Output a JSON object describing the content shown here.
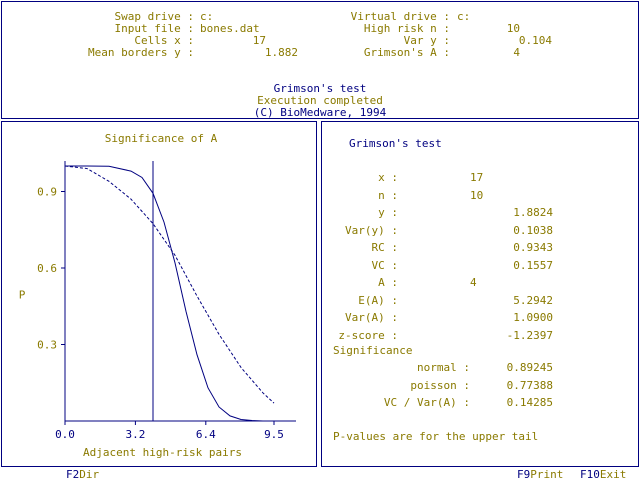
{
  "header": {
    "rows": [
      {
        "left_label": "Swap drive :",
        "left_value": "c:",
        "right_label": "Virtual drive :",
        "right_value": "c:"
      },
      {
        "left_label": "Input file :",
        "left_value": "bones.dat",
        "right_label": "High risk n :",
        "right_value": "10"
      },
      {
        "left_label": "Cells x :",
        "left_value": "17",
        "right_label": "Var y :",
        "right_value": "0.104"
      },
      {
        "left_label": "Mean borders y :",
        "left_value": "1.882",
        "right_label": "Grimson's A :",
        "right_value": "4"
      }
    ],
    "title": "Grimson's test",
    "status": "Execution completed",
    "copyright": "(C) BioMedware, 1994"
  },
  "chart_panel": {
    "title": "Significance of A"
  },
  "chart_data": {
    "type": "line",
    "title": "Significance of A",
    "xlabel": "Adjacent high-risk pairs",
    "ylabel": "P",
    "xlim": [
      0.0,
      10.5
    ],
    "ylim": [
      0.0,
      1.0
    ],
    "x_ticks": [
      "0.0",
      "3.2",
      "6.4",
      "9.5"
    ],
    "y_ticks": [
      "0.3",
      "0.6",
      "0.9"
    ],
    "observed_A": 4,
    "series": [
      {
        "style": "solid",
        "x": [
          0,
          1,
          2,
          3,
          3.5,
          4,
          4.5,
          5,
          5.5,
          6,
          6.5,
          7,
          7.5,
          8,
          8.5,
          9
        ],
        "y": [
          1.0,
          1.0,
          0.999,
          0.98,
          0.955,
          0.893,
          0.78,
          0.62,
          0.43,
          0.26,
          0.13,
          0.055,
          0.02,
          0.006,
          0.002,
          0.0
        ]
      },
      {
        "style": "dashed",
        "x": [
          0,
          1,
          2,
          3,
          4,
          5,
          6,
          7,
          8,
          9,
          9.5
        ],
        "y": [
          1.0,
          0.99,
          0.94,
          0.87,
          0.774,
          0.65,
          0.49,
          0.34,
          0.21,
          0.11,
          0.07
        ]
      }
    ]
  },
  "results": {
    "title": "Grimson's test",
    "rows": [
      {
        "label": "x :",
        "value": "17"
      },
      {
        "label": "n :",
        "value": "10"
      },
      {
        "label": "y :",
        "value": "1.8824"
      },
      {
        "label": "Var(y) :",
        "value": "0.1038"
      },
      {
        "label": "RC :",
        "value": "0.9343"
      },
      {
        "label": "VC :",
        "value": "0.1557"
      },
      {
        "label": "A :",
        "value": "4"
      },
      {
        "label": "E(A) :",
        "value": "5.2942"
      },
      {
        "label": "Var(A) :",
        "value": "1.0900"
      },
      {
        "label": "z-score :",
        "value": "-1.2397"
      }
    ],
    "significance_label": "Significance",
    "sig_rows": [
      {
        "label": "normal :",
        "value": "0.89245"
      },
      {
        "label": "poisson :",
        "value": "0.77388"
      },
      {
        "label": "VC / Var(A) :",
        "value": "0.14285"
      }
    ],
    "footnote": "P-values are for the upper tail"
  },
  "footer": {
    "f2_key": "F2",
    "f2_label": "Dir",
    "f9_key": "F9",
    "f9_label": "Print",
    "f10_key": "F10",
    "f10_label": "Exit"
  },
  "colors": {
    "label": "#8a7a00",
    "heading": "#000080",
    "frame": "#000080",
    "curve": "#000080"
  }
}
